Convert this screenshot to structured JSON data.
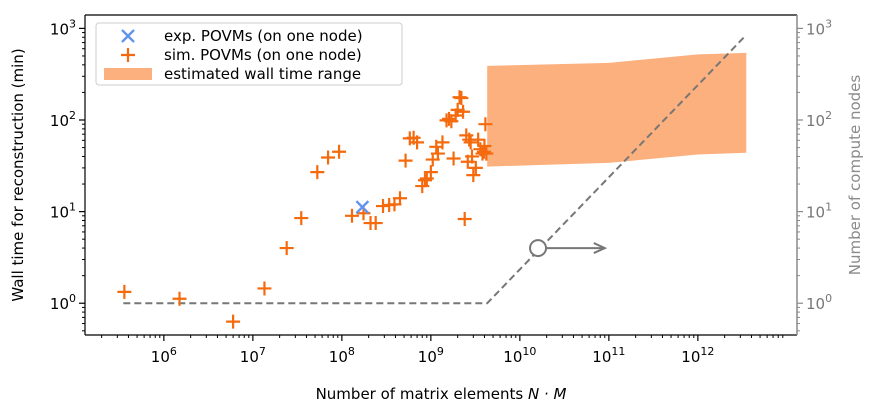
{
  "chart_data": {
    "type": "scatter",
    "xlabel_text": "Number of matrix elements ",
    "xlabel_math": "N · M",
    "ylabel": "Wall time for reconstruction (min)",
    "y2label": "Number of compute nodes",
    "xscale": "log",
    "yscale": "log",
    "y2scale": "log",
    "xlim": [
      130000.0,
      13000000000000.0
    ],
    "ylim": [
      0.45,
      1400
    ],
    "y2lim": [
      0.45,
      1400
    ],
    "x_tick_labels": [
      "10^6",
      "10^7",
      "10^8",
      "10^9",
      "10^10",
      "10^11",
      "10^12"
    ],
    "y_tick_labels": [
      "10^0",
      "10^1",
      "10^2",
      "10^3"
    ],
    "y2_tick_labels": [
      "10^0",
      "10^1",
      "10^2",
      "10^3"
    ],
    "legend_position": "upper-left",
    "colors": {
      "exp": "#6495ed",
      "sim": "#f56a0d",
      "band": "#fbb07e",
      "nodes_line": "#777777",
      "right_axis": "#8a8a8a"
    },
    "series": [
      {
        "name": "exp. POVMs (on one node)",
        "marker": "x",
        "points": [
          [
            170000000.0,
            11.2
          ]
        ]
      },
      {
        "name": "sim. POVMs (on one node)",
        "marker": "+",
        "points": [
          [
            360000.0,
            1.33
          ],
          [
            1500000.0,
            1.12
          ],
          [
            6000000.0,
            0.63
          ],
          [
            13500000.0,
            1.45
          ],
          [
            24000000.0,
            4.0
          ],
          [
            35000000.0,
            8.5
          ],
          [
            53000000.0,
            27
          ],
          [
            70000000.0,
            39
          ],
          [
            93000000.0,
            45
          ],
          [
            130000000.0,
            9.0
          ],
          [
            175000000.0,
            9.6
          ],
          [
            210000000.0,
            7.5
          ],
          [
            240000000.0,
            7.5
          ],
          [
            290000000.0,
            11.5
          ],
          [
            340000000.0,
            11.8
          ],
          [
            390000000.0,
            12.0
          ],
          [
            450000000.0,
            14.0
          ],
          [
            520000000.0,
            36
          ],
          [
            580000000.0,
            63
          ],
          [
            640000000.0,
            64
          ],
          [
            700000000.0,
            57
          ],
          [
            800000000.0,
            19
          ],
          [
            860000000.0,
            22
          ],
          [
            900000000.0,
            23
          ],
          [
            1000000000.0,
            27
          ],
          [
            1050000000.0,
            37
          ],
          [
            1150000000.0,
            51
          ],
          [
            1200000000.0,
            43
          ],
          [
            1350000000.0,
            57
          ],
          [
            1500000000.0,
            99
          ],
          [
            1600000000.0,
            103
          ],
          [
            1700000000.0,
            97
          ],
          [
            1800000000.0,
            38
          ],
          [
            1900000000.0,
            112
          ],
          [
            2000000000.0,
            129
          ],
          [
            2100000000.0,
            177
          ],
          [
            2200000000.0,
            174
          ],
          [
            2300000000.0,
            123
          ],
          [
            2400000000.0,
            8.3
          ],
          [
            2500000000.0,
            68
          ],
          [
            2600000000.0,
            35
          ],
          [
            2700000000.0,
            61
          ],
          [
            2800000000.0,
            57
          ],
          [
            2900000000.0,
            40
          ],
          [
            3000000000.0,
            25
          ],
          [
            3200000000.0,
            30
          ],
          [
            3400000000.0,
            61
          ],
          [
            3600000000.0,
            48
          ],
          [
            3800000000.0,
            43
          ],
          [
            4000000000.0,
            52
          ],
          [
            4200000000.0,
            43
          ],
          [
            4100000000.0,
            90
          ],
          [
            3950000000.0,
            45
          ]
        ]
      },
      {
        "name": "estimated wall time range",
        "type": "band",
        "upper": [
          [
            4300000000.0,
            390
          ],
          [
            100000000000.0,
            420
          ],
          [
            1000000000000.0,
            520
          ],
          [
            3500000000000.0,
            540
          ]
        ],
        "lower": [
          [
            4300000000.0,
            31
          ],
          [
            100000000000.0,
            34
          ],
          [
            1000000000000.0,
            42
          ],
          [
            3500000000000.0,
            44
          ]
        ]
      }
    ],
    "nodes_line": {
      "axis": "right",
      "style": "dashed",
      "points": [
        [
          350000.0,
          1.0
        ],
        [
          4300000000.0,
          1.0
        ],
        [
          3500000000000.0,
          850
        ]
      ]
    },
    "annotation": {
      "type": "circle-with-right-arrow",
      "at": [
        16000000000.0,
        4.0
      ],
      "arrow_to": [
        90000000000.0,
        4.0
      ]
    }
  }
}
